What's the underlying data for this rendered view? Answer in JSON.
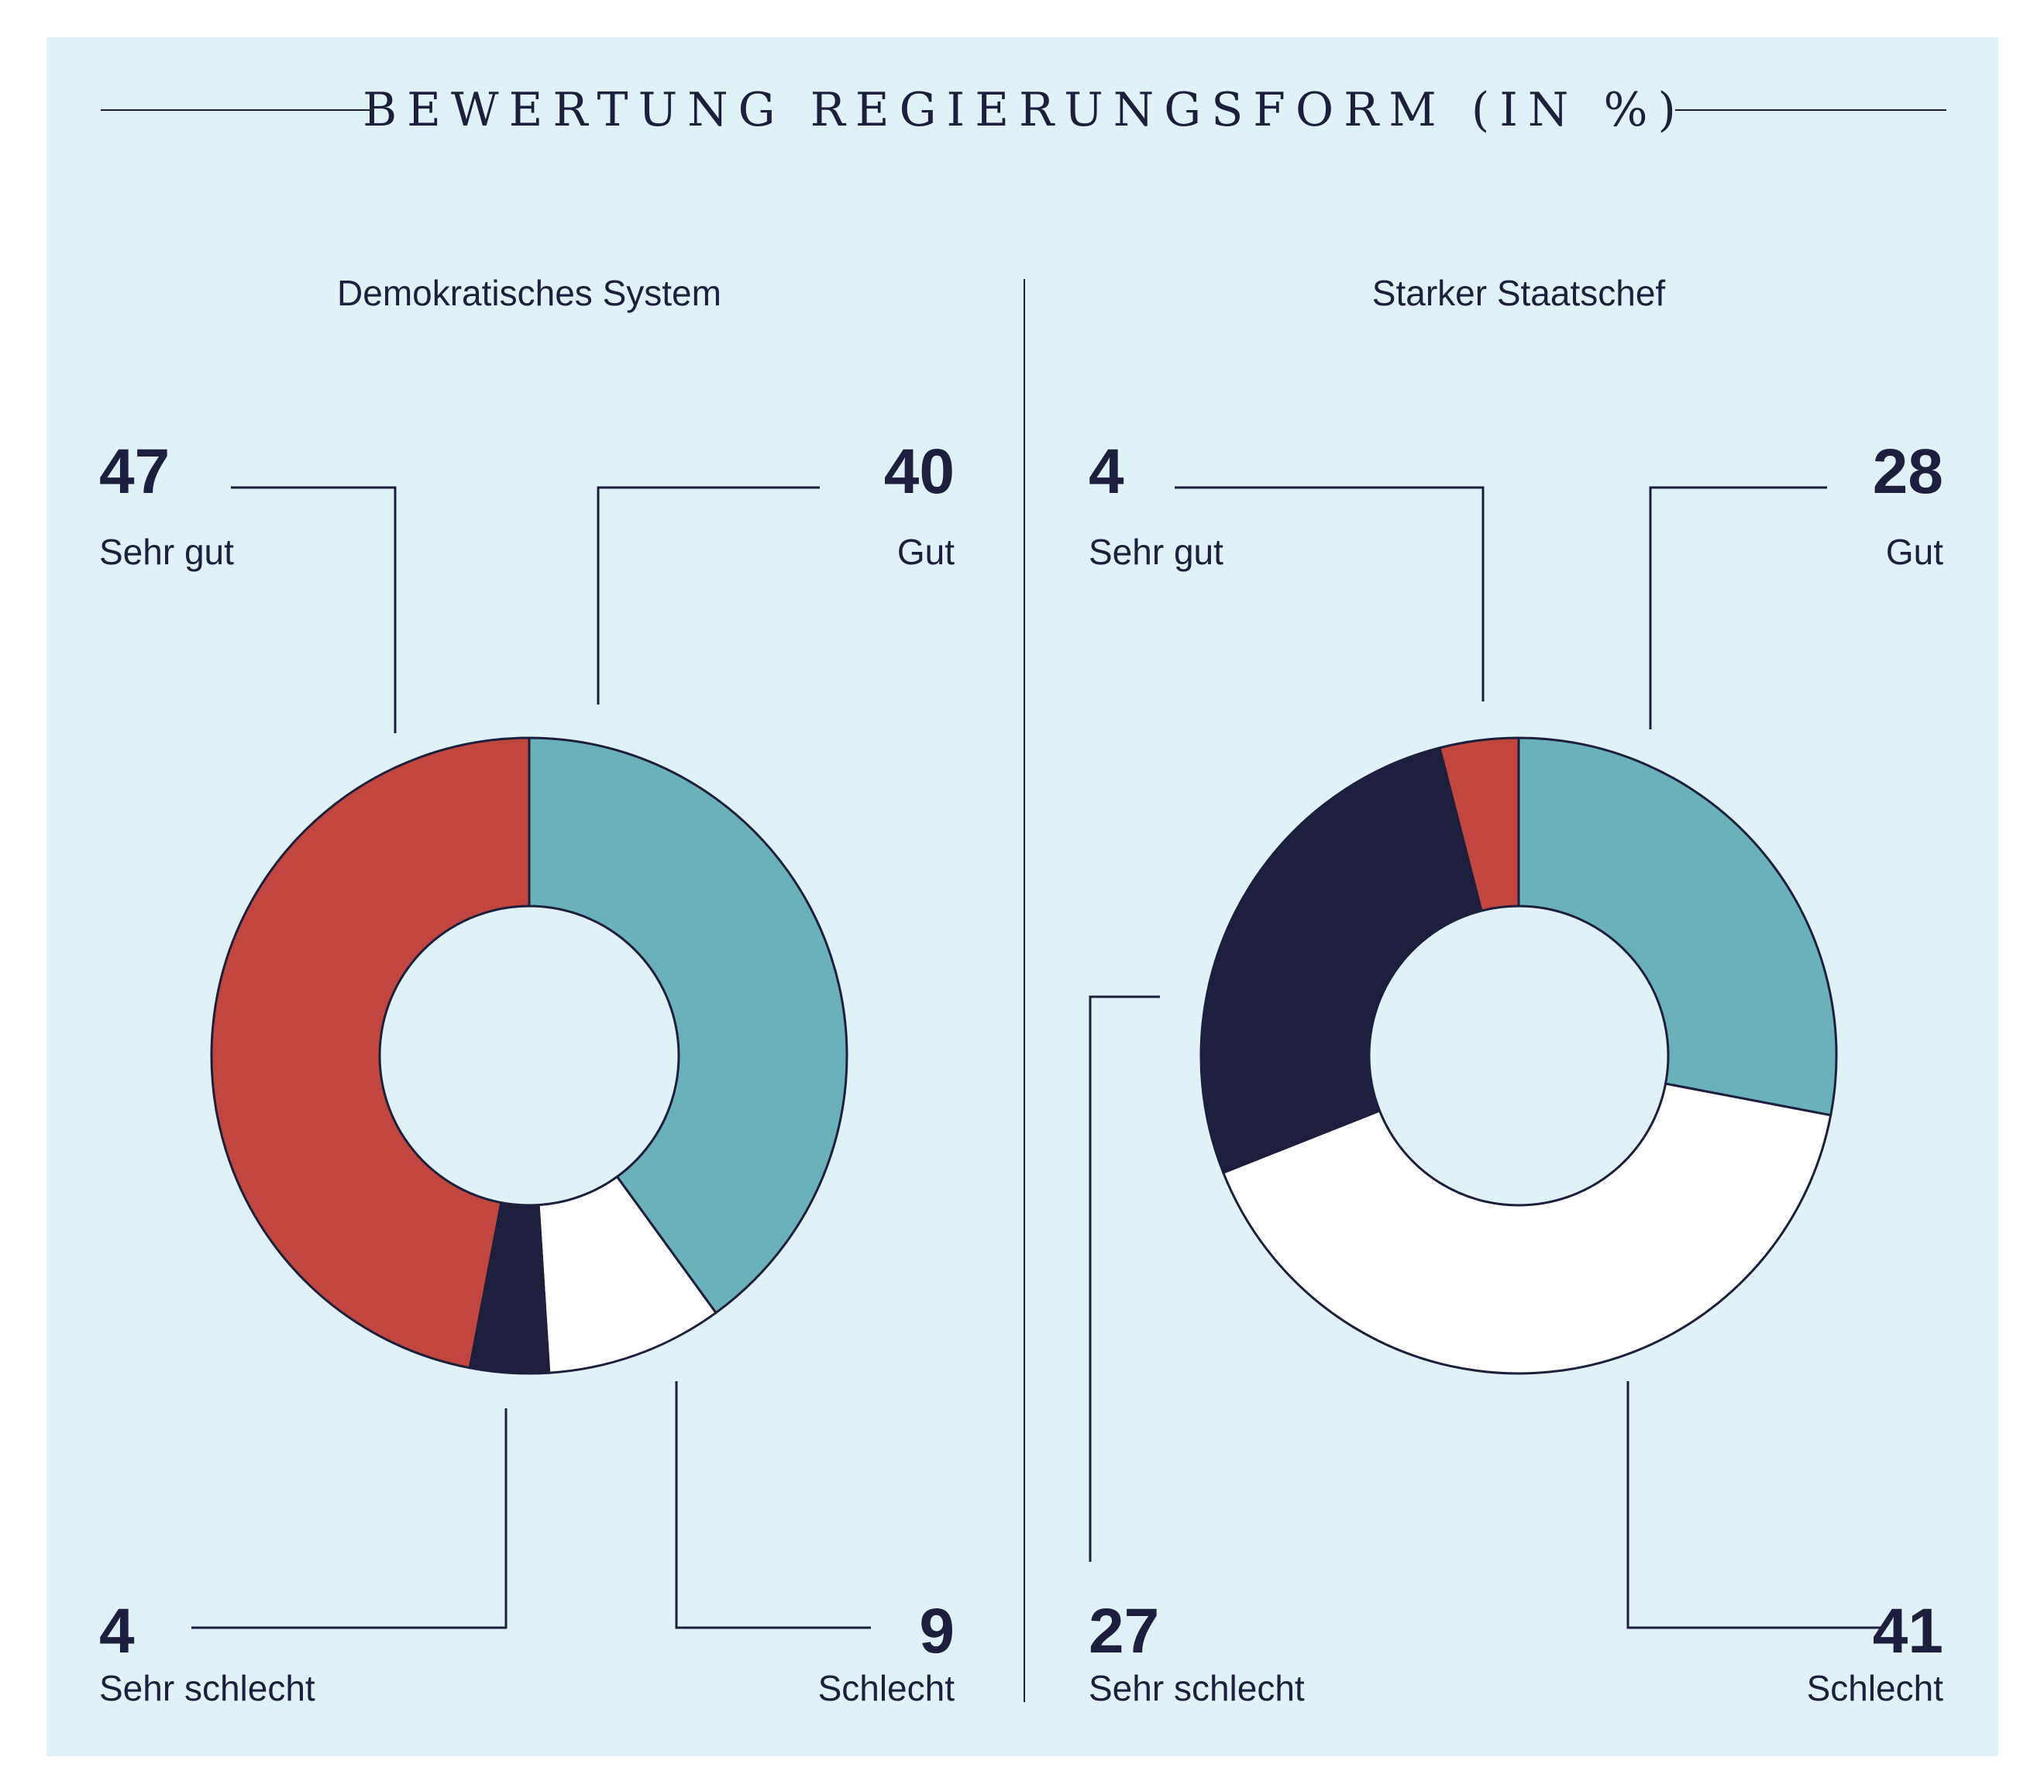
{
  "title": "BEWERTUNG REGIERUNGSFORM (IN %)",
  "colors": {
    "background": "#e0f1f8",
    "sehr_gut": "#c0463f",
    "gut": "#6ab1b8",
    "schlecht": "#ffffff",
    "sehr_schlecht": "#1e1f3d",
    "ink": "#1e1f3d"
  },
  "chart_data": [
    {
      "type": "pie",
      "title": "Demokratisches System",
      "unit": "%",
      "categories": [
        "Gut",
        "Schlecht",
        "Sehr schlecht",
        "Sehr gut"
      ],
      "values": [
        40,
        9,
        4,
        47
      ],
      "labels": {
        "sehr_gut": {
          "value": "47",
          "label": "Sehr gut"
        },
        "gut": {
          "value": "40",
          "label": "Gut"
        },
        "sehr_schlecht": {
          "value": "4",
          "label": "Sehr schlecht"
        },
        "schlecht": {
          "value": "9",
          "label": "Schlecht"
        }
      }
    },
    {
      "type": "pie",
      "title": "Starker Staatschef",
      "unit": "%",
      "categories": [
        "Gut",
        "Schlecht",
        "Sehr schlecht",
        "Sehr gut"
      ],
      "values": [
        28,
        41,
        27,
        4
      ],
      "labels": {
        "sehr_gut": {
          "value": "4",
          "label": "Sehr gut"
        },
        "gut": {
          "value": "28",
          "label": "Gut"
        },
        "sehr_schlecht": {
          "value": "27",
          "label": "Sehr schlecht"
        },
        "schlecht": {
          "value": "41",
          "label": "Schlecht"
        }
      }
    }
  ]
}
